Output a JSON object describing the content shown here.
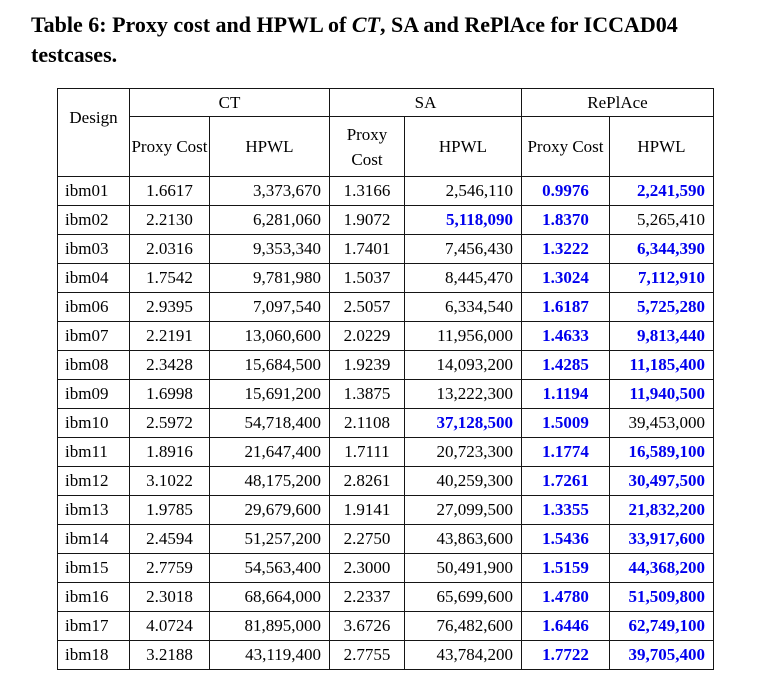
{
  "title": {
    "part1": "Table 6: Proxy cost and HPWL of ",
    "ct_italic": "CT",
    "part2": ", SA and RePlAce for ICCAD04 testcases."
  },
  "colors": {
    "highlight": "#0000EE",
    "text": "#000000",
    "border": "#151515"
  },
  "table": {
    "design_header": "Design",
    "groups": [
      {
        "label": "CT"
      },
      {
        "label": "SA"
      },
      {
        "label": "RePlAce"
      }
    ],
    "subheaders": {
      "proxy": "Proxy Cost",
      "hpwl": "HPWL"
    },
    "rows": [
      {
        "design": "ibm01",
        "values": [
          "1.6617",
          "3,373,670",
          "1.3166",
          "2,546,110",
          "0.9976",
          "2,241,590"
        ],
        "highlight": [
          false,
          false,
          false,
          false,
          true,
          true
        ]
      },
      {
        "design": "ibm02",
        "values": [
          "2.2130",
          "6,281,060",
          "1.9072",
          "5,118,090",
          "1.8370",
          "5,265,410"
        ],
        "highlight": [
          false,
          false,
          false,
          true,
          true,
          false
        ]
      },
      {
        "design": "ibm03",
        "values": [
          "2.0316",
          "9,353,340",
          "1.7401",
          "7,456,430",
          "1.3222",
          "6,344,390"
        ],
        "highlight": [
          false,
          false,
          false,
          false,
          true,
          true
        ]
      },
      {
        "design": "ibm04",
        "values": [
          "1.7542",
          "9,781,980",
          "1.5037",
          "8,445,470",
          "1.3024",
          "7,112,910"
        ],
        "highlight": [
          false,
          false,
          false,
          false,
          true,
          true
        ]
      },
      {
        "design": "ibm06",
        "values": [
          "2.9395",
          "7,097,540",
          "2.5057",
          "6,334,540",
          "1.6187",
          "5,725,280"
        ],
        "highlight": [
          false,
          false,
          false,
          false,
          true,
          true
        ]
      },
      {
        "design": "ibm07",
        "values": [
          "2.2191",
          "13,060,600",
          "2.0229",
          "11,956,000",
          "1.4633",
          "9,813,440"
        ],
        "highlight": [
          false,
          false,
          false,
          false,
          true,
          true
        ]
      },
      {
        "design": "ibm08",
        "values": [
          "2.3428",
          "15,684,500",
          "1.9239",
          "14,093,200",
          "1.4285",
          "11,185,400"
        ],
        "highlight": [
          false,
          false,
          false,
          false,
          true,
          true
        ]
      },
      {
        "design": "ibm09",
        "values": [
          "1.6998",
          "15,691,200",
          "1.3875",
          "13,222,300",
          "1.1194",
          "11,940,500"
        ],
        "highlight": [
          false,
          false,
          false,
          false,
          true,
          true
        ]
      },
      {
        "design": "ibm10",
        "values": [
          "2.5972",
          "54,718,400",
          "2.1108",
          "37,128,500",
          "1.5009",
          "39,453,000"
        ],
        "highlight": [
          false,
          false,
          false,
          true,
          true,
          false
        ]
      },
      {
        "design": "ibm11",
        "values": [
          "1.8916",
          "21,647,400",
          "1.7111",
          "20,723,300",
          "1.1774",
          "16,589,100"
        ],
        "highlight": [
          false,
          false,
          false,
          false,
          true,
          true
        ]
      },
      {
        "design": "ibm12",
        "values": [
          "3.1022",
          "48,175,200",
          "2.8261",
          "40,259,300",
          "1.7261",
          "30,497,500"
        ],
        "highlight": [
          false,
          false,
          false,
          false,
          true,
          true
        ]
      },
      {
        "design": "ibm13",
        "values": [
          "1.9785",
          "29,679,600",
          "1.9141",
          "27,099,500",
          "1.3355",
          "21,832,200"
        ],
        "highlight": [
          false,
          false,
          false,
          false,
          true,
          true
        ]
      },
      {
        "design": "ibm14",
        "values": [
          "2.4594",
          "51,257,200",
          "2.2750",
          "43,863,600",
          "1.5436",
          "33,917,600"
        ],
        "highlight": [
          false,
          false,
          false,
          false,
          true,
          true
        ]
      },
      {
        "design": "ibm15",
        "values": [
          "2.7759",
          "54,563,400",
          "2.3000",
          "50,491,900",
          "1.5159",
          "44,368,200"
        ],
        "highlight": [
          false,
          false,
          false,
          false,
          true,
          true
        ]
      },
      {
        "design": "ibm16",
        "values": [
          "2.3018",
          "68,664,000",
          "2.2337",
          "65,699,600",
          "1.4780",
          "51,509,800"
        ],
        "highlight": [
          false,
          false,
          false,
          false,
          true,
          true
        ]
      },
      {
        "design": "ibm17",
        "values": [
          "4.0724",
          "81,895,000",
          "3.6726",
          "76,482,600",
          "1.6446",
          "62,749,100"
        ],
        "highlight": [
          false,
          false,
          false,
          false,
          true,
          true
        ]
      },
      {
        "design": "ibm18",
        "values": [
          "3.2188",
          "43,119,400",
          "2.7755",
          "43,784,200",
          "1.7722",
          "39,705,400"
        ],
        "highlight": [
          false,
          false,
          false,
          false,
          true,
          true
        ]
      }
    ]
  }
}
